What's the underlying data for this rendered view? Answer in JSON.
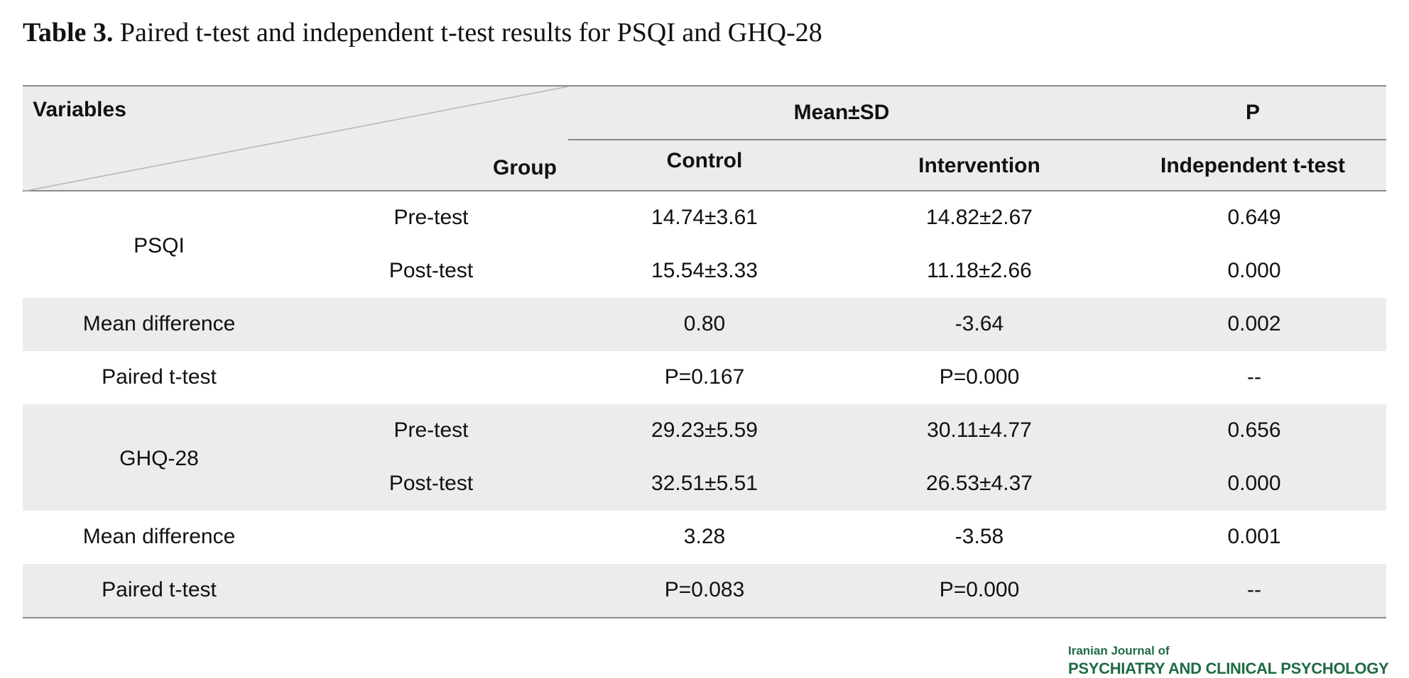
{
  "caption": {
    "label": "Table 3.",
    "text": " Paired t-test and independent t-test results for PSQI and GHQ-28"
  },
  "header": {
    "variables": "Variables",
    "group": "Group",
    "mean_sd": "Mean±SD",
    "p": "P",
    "control": "Control",
    "intervention": "Intervention",
    "independent": "Independent t-test"
  },
  "rows": [
    {
      "variable": "PSQI",
      "group": "Pre-test",
      "control": "14.74±3.61",
      "intervention": "14.82±2.67",
      "p": "0.649"
    },
    {
      "variable": "",
      "group": "Post-test",
      "control": "15.54±3.33",
      "intervention": "11.18±2.66",
      "p": "0.000"
    },
    {
      "variable": "Mean difference",
      "group": "",
      "control": "0.80",
      "intervention": "-3.64",
      "p": "0.002"
    },
    {
      "variable": "Paired t-test",
      "group": "",
      "control": "P=0.167",
      "intervention": "P=0.000",
      "p": "--"
    },
    {
      "variable": "GHQ-28",
      "group": "Pre-test",
      "control": "29.23±5.59",
      "intervention": "30.11±4.77",
      "p": "0.656"
    },
    {
      "variable": "",
      "group": "Post-test",
      "control": "32.51±5.51",
      "intervention": "26.53±4.37",
      "p": "0.000"
    },
    {
      "variable": "Mean difference",
      "group": "",
      "control": "3.28",
      "intervention": "-3.58",
      "p": "0.001"
    },
    {
      "variable": "Paired t-test",
      "group": "",
      "control": "P=0.083",
      "intervention": "P=0.000",
      "p": "--"
    }
  ],
  "logo": {
    "line1": "Iranian Journal of",
    "line2": "PSYCHIATRY AND CLINICAL PSYCHOLOGY",
    "color": "#1e6b44"
  }
}
